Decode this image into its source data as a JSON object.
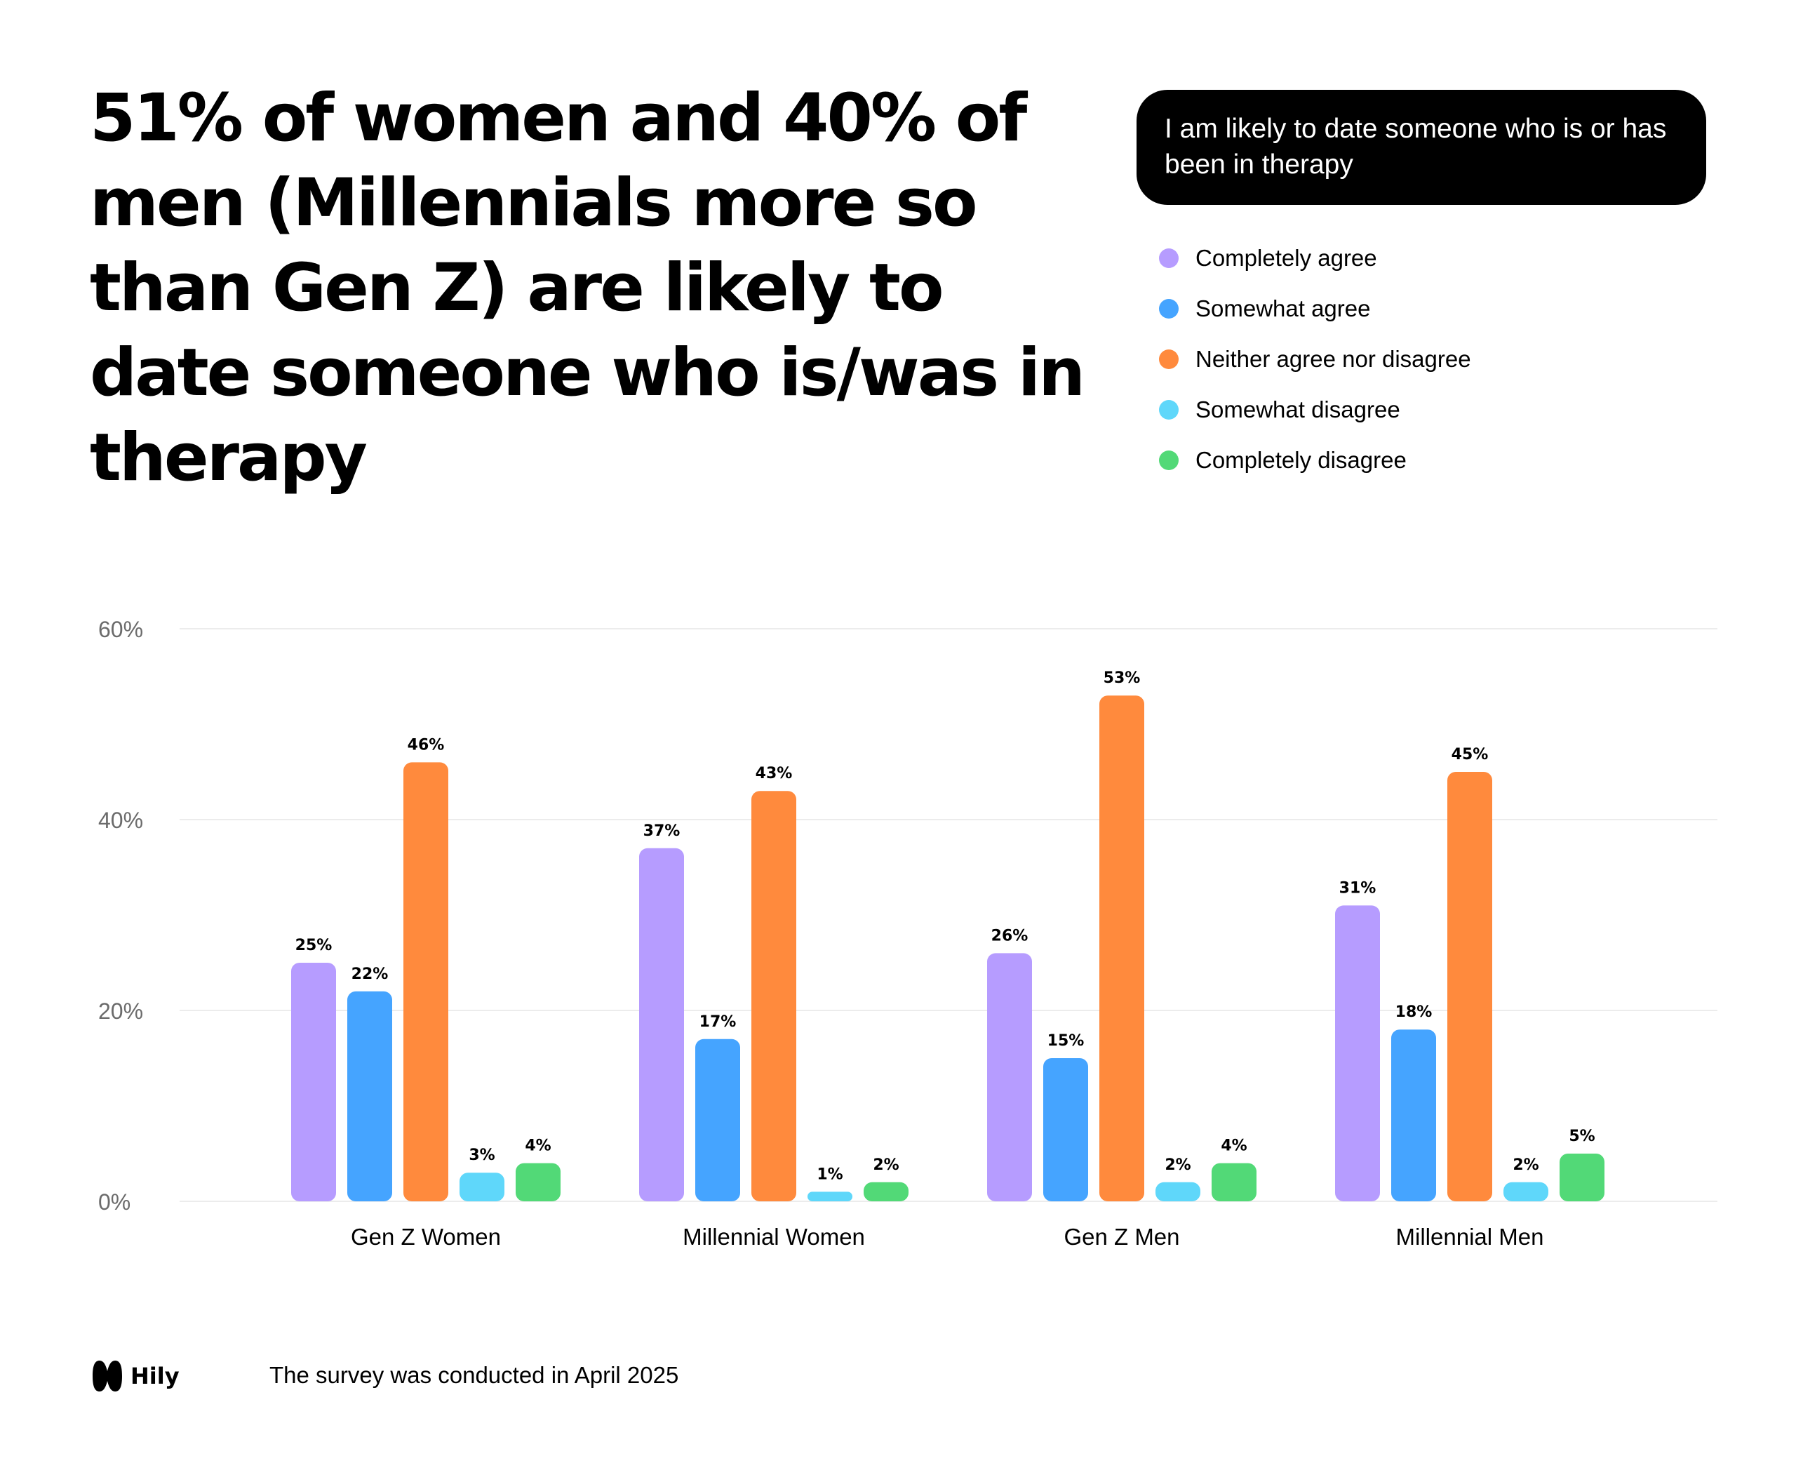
{
  "headline": "51% of women and 40% of men (Millennials more so than Gen Z) are likely to date someone who is/was in therapy",
  "question": "I am likely to date someone who is or has been in therapy",
  "legend": [
    {
      "label": "Completely agree",
      "color": "#b69cff"
    },
    {
      "label": "Somewhat agree",
      "color": "#45a4ff"
    },
    {
      "label": "Neither agree nor disagree",
      "color": "#ff8a3d"
    },
    {
      "label": "Somewhat disagree",
      "color": "#5fd7fa"
    },
    {
      "label": "Completely disagree",
      "color": "#52d977"
    }
  ],
  "chart_data": {
    "type": "bar",
    "title": "I am likely to date someone who is or has been in therapy",
    "xlabel": "",
    "ylabel": "",
    "ylim": [
      0,
      60
    ],
    "yticks": [
      0,
      20,
      40,
      60
    ],
    "ytick_labels": [
      "0%",
      "20%",
      "40%",
      "60%"
    ],
    "categories": [
      "Gen Z Women",
      "Millennial Women",
      "Gen Z Men",
      "Millennial Men"
    ],
    "series": [
      {
        "name": "Completely agree",
        "color": "#b69cff",
        "values": [
          25,
          37,
          26,
          31
        ],
        "labels": [
          "25%",
          "37%",
          "26%",
          "31%"
        ]
      },
      {
        "name": "Somewhat agree",
        "color": "#45a4ff",
        "values": [
          22,
          17,
          15,
          18
        ],
        "labels": [
          "22%",
          "17%",
          "15%",
          "18%"
        ]
      },
      {
        "name": "Neither agree nor disagree",
        "color": "#ff8a3d",
        "values": [
          46,
          43,
          53,
          45
        ],
        "labels": [
          "46%",
          "43%",
          "53%",
          "45%"
        ]
      },
      {
        "name": "Somewhat disagree",
        "color": "#5fd7fa",
        "values": [
          3,
          1,
          2,
          2
        ],
        "labels": [
          "3%",
          "1%",
          "2%",
          "2%"
        ]
      },
      {
        "name": "Completely disagree",
        "color": "#52d977",
        "values": [
          4,
          2,
          4,
          5
        ],
        "labels": [
          "4%",
          "2%",
          "4%",
          "5%"
        ]
      }
    ],
    "grid": true,
    "legend_position": "top-right"
  },
  "footer": {
    "brand": "Hily",
    "note": "The survey was conducted in April 2025"
  }
}
